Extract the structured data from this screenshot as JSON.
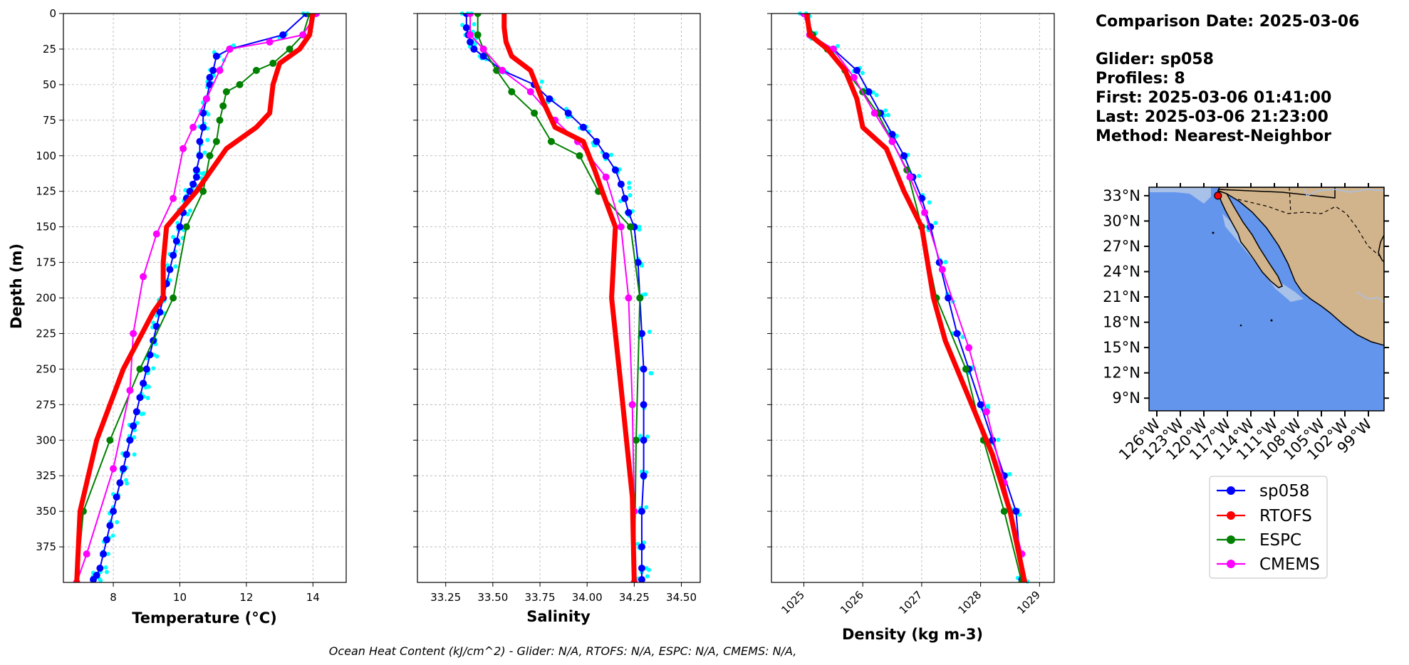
{
  "chart_data": [
    {
      "type": "line",
      "xlabel": "Temperature (°C)",
      "ylabel": "Depth (m)",
      "xlim": [
        6.5,
        15.0
      ],
      "ylim": [
        400,
        0
      ],
      "xticks": [
        8,
        10,
        12,
        14
      ],
      "yticks": [
        0,
        25,
        50,
        75,
        100,
        125,
        150,
        175,
        200,
        225,
        250,
        275,
        300,
        325,
        350,
        375
      ],
      "grid": true,
      "series": [
        {
          "name": "sp058",
          "color": "#0000ff",
          "x": [
            13.8,
            13.1,
            11.5,
            11.1,
            11.0,
            10.9,
            10.9,
            10.8,
            10.7,
            10.7,
            10.6,
            10.6,
            10.5,
            10.5,
            10.4,
            10.3,
            10.2,
            10.1,
            10.0,
            9.9,
            9.8,
            9.7,
            9.6,
            9.5,
            9.4,
            9.3,
            9.2,
            9.1,
            9.0,
            8.9,
            8.8,
            8.7,
            8.6,
            8.5,
            8.4,
            8.3,
            8.2,
            8.1,
            8.0,
            7.9,
            7.8,
            7.7,
            7.6,
            7.5,
            7.4
          ],
          "y": [
            0,
            15,
            25,
            30,
            40,
            45,
            50,
            60,
            70,
            80,
            90,
            100,
            110,
            115,
            120,
            125,
            130,
            140,
            150,
            160,
            170,
            180,
            190,
            200,
            210,
            220,
            230,
            240,
            250,
            260,
            270,
            280,
            290,
            300,
            310,
            320,
            330,
            340,
            350,
            360,
            370,
            380,
            390,
            395,
            398
          ]
        },
        {
          "name": "RTOFS",
          "color": "#ff0000",
          "x": [
            14.0,
            13.9,
            13.6,
            13.0,
            12.8,
            12.7,
            12.3,
            11.4,
            10.5,
            9.6,
            9.5,
            9.5,
            9.2,
            8.3,
            7.5,
            7.0,
            6.9
          ],
          "y": [
            0,
            15,
            25,
            35,
            50,
            70,
            80,
            95,
            125,
            150,
            175,
            200,
            210,
            250,
            300,
            350,
            400
          ]
        },
        {
          "name": "ESPC",
          "color": "#008000",
          "x": [
            13.9,
            13.7,
            13.3,
            12.8,
            12.3,
            11.8,
            11.4,
            11.3,
            11.2,
            11.1,
            10.9,
            10.7,
            10.2,
            9.8,
            8.8,
            7.9,
            7.1,
            6.9
          ],
          "y": [
            0,
            15,
            25,
            35,
            40,
            50,
            55,
            65,
            75,
            90,
            100,
            125,
            150,
            200,
            250,
            300,
            350,
            400
          ]
        },
        {
          "name": "CMEMS",
          "color": "#ff00ff",
          "x": [
            14.1,
            13.7,
            12.7,
            11.5,
            11.2,
            10.8,
            10.4,
            10.1,
            9.8,
            9.3,
            8.9,
            8.6,
            8.5,
            8.0,
            7.2,
            6.9
          ],
          "y": [
            0,
            15,
            20,
            25,
            40,
            60,
            80,
            95,
            130,
            155,
            185,
            225,
            265,
            320,
            380,
            400
          ]
        }
      ]
    },
    {
      "type": "line",
      "xlabel": "Salinity",
      "xlim": [
        33.1,
        34.6
      ],
      "ylim": [
        400,
        0
      ],
      "xticks": [
        33.25,
        33.5,
        33.75,
        34.0,
        34.25,
        34.5
      ],
      "grid": true,
      "series": [
        {
          "name": "sp058",
          "color": "#0000ff",
          "x": [
            33.36,
            33.36,
            33.37,
            33.38,
            33.4,
            33.45,
            33.55,
            33.72,
            33.8,
            33.9,
            33.98,
            34.05,
            34.1,
            34.15,
            34.18,
            34.2,
            34.22,
            34.25,
            34.27,
            34.28,
            34.29,
            34.3,
            34.3,
            34.3,
            34.3,
            34.29,
            34.29,
            34.29,
            34.29
          ],
          "y": [
            0,
            10,
            15,
            20,
            25,
            30,
            40,
            50,
            60,
            70,
            80,
            90,
            100,
            110,
            120,
            130,
            140,
            150,
            175,
            200,
            225,
            250,
            275,
            300,
            325,
            350,
            375,
            390,
            398
          ]
        },
        {
          "name": "RTOFS",
          "color": "#ff0000",
          "x": [
            33.56,
            33.56,
            33.57,
            33.6,
            33.7,
            33.76,
            33.83,
            33.98,
            34.04,
            34.08,
            34.15,
            34.13,
            34.17,
            34.24,
            34.25
          ],
          "y": [
            0,
            10,
            20,
            30,
            40,
            60,
            80,
            90,
            110,
            125,
            150,
            200,
            250,
            340,
            400
          ]
        },
        {
          "name": "ESPC",
          "color": "#008000",
          "x": [
            33.42,
            33.42,
            33.45,
            33.52,
            33.6,
            33.72,
            33.81,
            33.96,
            34.06,
            34.23,
            34.28,
            34.26,
            34.25
          ],
          "y": [
            0,
            15,
            25,
            40,
            55,
            70,
            90,
            100,
            125,
            150,
            200,
            300,
            400
          ]
        },
        {
          "name": "CMEMS",
          "color": "#ff00ff",
          "x": [
            33.38,
            33.38,
            33.45,
            33.55,
            33.7,
            33.83,
            33.95,
            34.1,
            34.18,
            34.22,
            34.24,
            34.25,
            34.25
          ],
          "y": [
            0,
            15,
            25,
            40,
            55,
            75,
            90,
            115,
            150,
            200,
            275,
            350,
            400
          ]
        }
      ]
    },
    {
      "type": "line",
      "xlabel": "Density (kg m-3)",
      "xlim": [
        1024.45,
        1029.25
      ],
      "ylim": [
        400,
        0
      ],
      "xticks": [
        1025,
        1026,
        1027,
        1028,
        1029
      ],
      "grid": true,
      "series": [
        {
          "name": "sp058",
          "color": "#0000ff",
          "x": [
            1025.0,
            1025.1,
            1025.5,
            1025.9,
            1026.1,
            1026.3,
            1026.5,
            1026.7,
            1026.85,
            1027.0,
            1027.15,
            1027.3,
            1027.45,
            1027.6,
            1027.8,
            1028.0,
            1028.2,
            1028.4,
            1028.6,
            1028.7
          ],
          "y": [
            0,
            15,
            25,
            40,
            55,
            70,
            85,
            100,
            115,
            130,
            150,
            175,
            200,
            225,
            250,
            275,
            300,
            325,
            350,
            398
          ]
        },
        {
          "name": "RTOFS",
          "color": "#ff0000",
          "x": [
            1025.05,
            1025.1,
            1025.4,
            1025.7,
            1025.9,
            1026.0,
            1026.4,
            1026.7,
            1027.0,
            1027.2,
            1027.4,
            1027.8,
            1028.2,
            1028.5,
            1028.75
          ],
          "y": [
            0,
            15,
            25,
            40,
            60,
            80,
            95,
            125,
            150,
            200,
            230,
            270,
            310,
            350,
            400
          ]
        },
        {
          "name": "ESPC",
          "color": "#008000",
          "x": [
            1025.05,
            1025.15,
            1025.4,
            1025.7,
            1026.0,
            1026.25,
            1026.5,
            1026.75,
            1027.0,
            1027.25,
            1027.75,
            1028.05,
            1028.4,
            1028.7
          ],
          "y": [
            0,
            15,
            25,
            40,
            55,
            70,
            90,
            110,
            150,
            200,
            250,
            300,
            350,
            400
          ]
        },
        {
          "name": "CMEMS",
          "color": "#ff00ff",
          "x": [
            1025.0,
            1025.1,
            1025.5,
            1025.85,
            1026.2,
            1026.5,
            1026.8,
            1027.05,
            1027.35,
            1027.8,
            1028.1,
            1028.4,
            1028.7
          ],
          "y": [
            0,
            15,
            25,
            45,
            70,
            90,
            115,
            140,
            180,
            235,
            280,
            330,
            380
          ]
        }
      ]
    }
  ],
  "info": {
    "lines": [
      "Comparison Date: 2025-03-06",
      "",
      "Glider: sp058",
      "Profiles: 8",
      "First: 2025-03-06 01:41:00",
      "Last: 2025-03-06 21:23:00",
      "Method: Nearest-Neighbor"
    ]
  },
  "map": {
    "lon_range": [
      -127,
      -97
    ],
    "lat_range": [
      7.5,
      34
    ],
    "lat_ticks": [
      "33°N",
      "30°N",
      "27°N",
      "24°N",
      "21°N",
      "18°N",
      "15°N",
      "12°N",
      "9°N"
    ],
    "lat_values": [
      33,
      30,
      27,
      24,
      21,
      18,
      15,
      12,
      9
    ],
    "lon_ticks": [
      "126°W",
      "123°W",
      "120°W",
      "117°W",
      "114°W",
      "111°W",
      "108°W",
      "105°W",
      "102°W",
      "99°W"
    ],
    "lon_values": [
      -126,
      -123,
      -120,
      -117,
      -114,
      -111,
      -108,
      -105,
      -102,
      -99
    ],
    "ocean_color": "#6495ed",
    "land_color": "#d2b48c",
    "glider_lon": -118.2,
    "glider_lat": 33.0
  },
  "legend": {
    "entries": [
      {
        "label": "sp058",
        "color": "#0000ff"
      },
      {
        "label": "RTOFS",
        "color": "#ff0000"
      },
      {
        "label": "ESPC",
        "color": "#008000"
      },
      {
        "label": "CMEMS",
        "color": "#ff00ff"
      }
    ]
  },
  "footer": "Ocean Heat Content (kJ/cm^2) - Glider: N/A,  RTOFS: N/A,  ESPC: N/A,  CMEMS: N/A,"
}
